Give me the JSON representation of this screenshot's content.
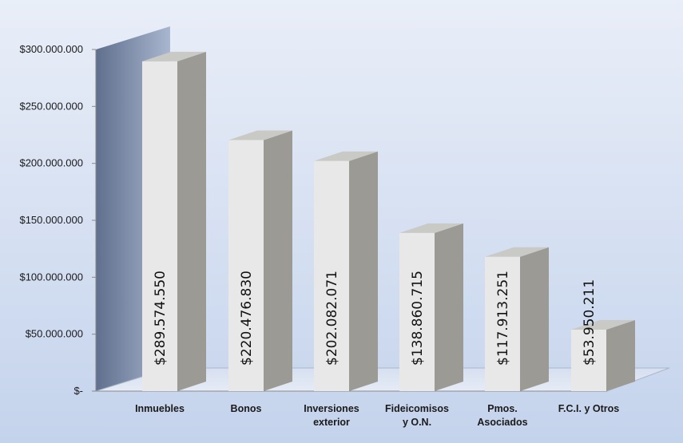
{
  "chart_data": {
    "type": "bar",
    "title": "",
    "xlabel": "",
    "ylabel": "",
    "ylim": [
      0,
      300000000
    ],
    "yticks": [
      0,
      50000000,
      100000000,
      150000000,
      200000000,
      250000000,
      300000000
    ],
    "ytick_labels": [
      "$-",
      "$50.000.000",
      "$100.000.000",
      "$150.000.000",
      "$200.000.000",
      "$250.000.000",
      "$300.000.000"
    ],
    "categories": [
      [
        "Inmuebles"
      ],
      [
        "Bonos"
      ],
      [
        "Inversiones",
        "exterior"
      ],
      [
        "Fideicomisos",
        "y O.N."
      ],
      [
        "Pmos.",
        "Asociados"
      ],
      [
        "F.C.I. y Otros"
      ]
    ],
    "values": [
      289574550,
      220476830,
      202082071,
      138860715,
      117913251,
      53950211
    ],
    "data_labels": [
      "$289.574.550",
      "$220.476.830",
      "$202.082.071",
      "$138.860.715",
      "$117.913.251",
      "$53.950.211"
    ],
    "grid": false,
    "legend": "none",
    "style": "3d-column"
  },
  "colors": {
    "background_top": "#e9eef8",
    "background_bottom": "#c4d3ec",
    "back_wall_dark": "#5f6f8d",
    "bar_front": "#e8e8e8",
    "bar_side": "#9c9a95",
    "bar_top": "#c9c9c6",
    "axis": "#8a8a8a",
    "text": "#1a1a1a"
  }
}
